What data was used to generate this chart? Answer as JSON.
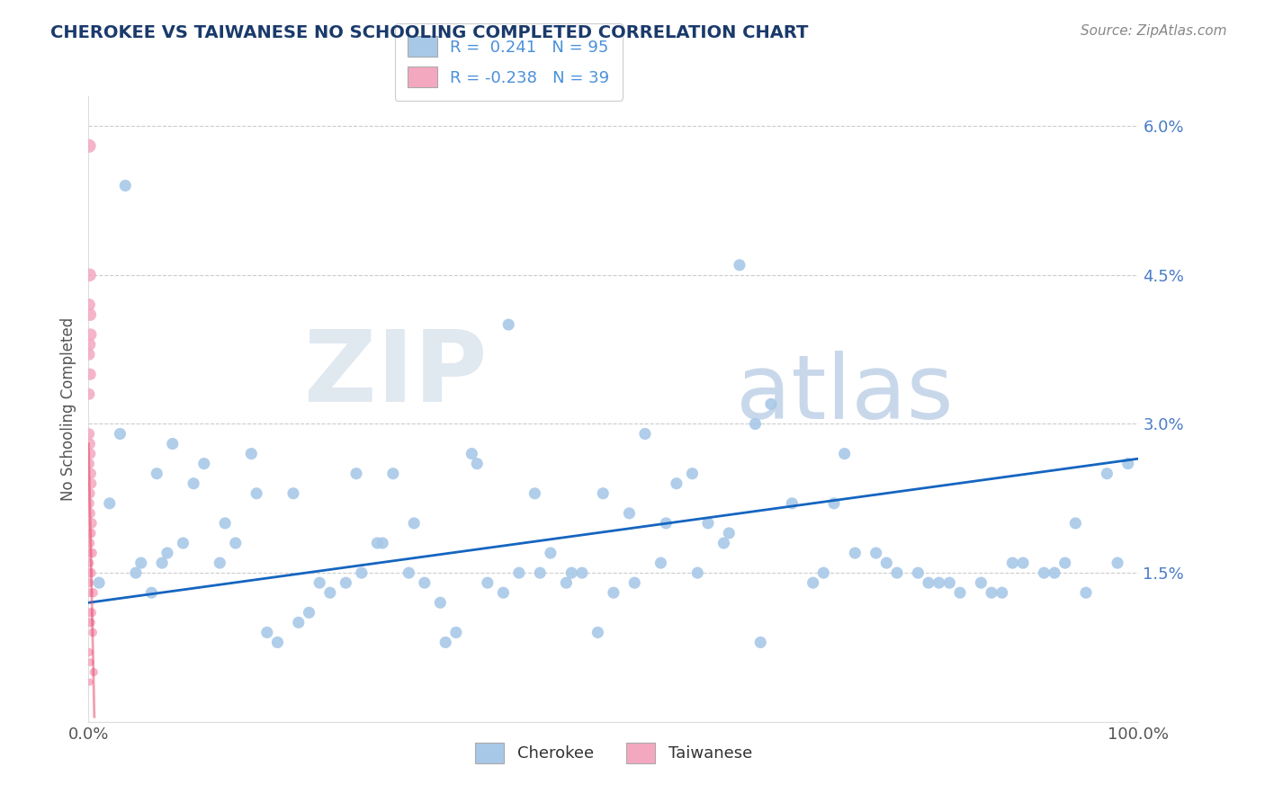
{
  "title": "CHEROKEE VS TAIWANESE NO SCHOOLING COMPLETED CORRELATION CHART",
  "source_text": "Source: ZipAtlas.com",
  "ylabel": "No Schooling Completed",
  "xlim": [
    0,
    100
  ],
  "ylim": [
    0,
    6.3
  ],
  "yticks": [
    0,
    1.5,
    3.0,
    4.5,
    6.0
  ],
  "ytick_labels": [
    "",
    "1.5%",
    "3.0%",
    "4.5%",
    "6.0%"
  ],
  "xtick_labels": [
    "0.0%",
    "100.0%"
  ],
  "cherokee_R": 0.241,
  "cherokee_N": 95,
  "taiwanese_R": -0.238,
  "taiwanese_N": 39,
  "cherokee_color": "#a8c8e8",
  "taiwanese_color": "#f4a8c0",
  "cherokee_line_color": "#1565c0",
  "taiwanese_line_color": "#e8406080",
  "background_color": "#ffffff",
  "grid_color": "#cccccc",
  "title_color": "#1a3a6b",
  "legend_color": "#4a90d9",
  "cherokee_x": [
    1.0,
    2.0,
    3.0,
    4.5,
    5.0,
    6.0,
    7.0,
    8.0,
    9.0,
    10.0,
    11.0,
    12.5,
    14.0,
    15.5,
    17.0,
    18.0,
    19.5,
    21.0,
    23.0,
    24.5,
    26.0,
    27.5,
    29.0,
    30.5,
    32.0,
    33.5,
    35.0,
    36.5,
    38.0,
    39.5,
    41.0,
    42.5,
    44.0,
    45.5,
    47.0,
    48.5,
    50.0,
    51.5,
    53.0,
    54.5,
    56.0,
    57.5,
    59.0,
    60.5,
    62.0,
    63.5,
    65.0,
    67.0,
    69.0,
    71.0,
    73.0,
    75.0,
    77.0,
    79.0,
    81.0,
    83.0,
    85.0,
    87.0,
    89.0,
    91.0,
    93.0,
    95.0,
    97.0,
    99.0,
    3.5,
    7.5,
    13.0,
    20.0,
    25.5,
    31.0,
    37.0,
    43.0,
    49.0,
    55.0,
    61.0,
    70.0,
    76.0,
    82.0,
    88.0,
    94.0,
    6.5,
    16.0,
    22.0,
    28.0,
    34.0,
    40.0,
    46.0,
    52.0,
    58.0,
    64.0,
    72.0,
    80.0,
    86.0,
    92.0,
    98.0
  ],
  "cherokee_y": [
    1.4,
    2.2,
    2.9,
    1.5,
    1.6,
    1.3,
    1.6,
    2.8,
    1.8,
    2.4,
    2.6,
    1.6,
    1.8,
    2.7,
    0.9,
    0.8,
    2.3,
    1.1,
    1.3,
    1.4,
    1.5,
    1.8,
    2.5,
    1.5,
    1.4,
    1.2,
    0.9,
    2.7,
    1.4,
    1.3,
    1.5,
    2.3,
    1.7,
    1.4,
    1.5,
    0.9,
    1.3,
    2.1,
    2.9,
    1.6,
    2.4,
    2.5,
    2.0,
    1.8,
    4.6,
    3.0,
    3.2,
    2.2,
    1.4,
    2.2,
    1.7,
    1.7,
    1.5,
    1.5,
    1.4,
    1.3,
    1.4,
    1.3,
    1.6,
    1.5,
    1.6,
    1.3,
    2.5,
    2.6,
    5.4,
    1.7,
    2.0,
    1.0,
    2.5,
    2.0,
    2.6,
    1.5,
    2.3,
    2.0,
    1.9,
    1.5,
    1.6,
    1.4,
    1.6,
    2.0,
    2.5,
    2.3,
    1.4,
    1.8,
    0.8,
    4.0,
    1.5,
    1.4,
    1.5,
    0.8,
    2.7,
    1.4,
    1.3,
    1.5,
    1.6
  ],
  "taiwanese_x": [
    0.05,
    0.05,
    0.05,
    0.05,
    0.05,
    0.05,
    0.05,
    0.05,
    0.05,
    0.05,
    0.05,
    0.05,
    0.1,
    0.1,
    0.1,
    0.1,
    0.1,
    0.1,
    0.1,
    0.1,
    0.15,
    0.15,
    0.15,
    0.15,
    0.15,
    0.15,
    0.15,
    0.2,
    0.2,
    0.2,
    0.2,
    0.25,
    0.25,
    0.3,
    0.3,
    0.35,
    0.4,
    0.45,
    0.5
  ],
  "taiwanese_y": [
    5.8,
    4.2,
    3.7,
    3.3,
    2.9,
    2.6,
    2.2,
    1.9,
    1.6,
    1.4,
    1.1,
    0.7,
    4.5,
    3.8,
    2.8,
    2.3,
    1.8,
    1.5,
    1.0,
    0.4,
    4.1,
    3.5,
    2.7,
    2.1,
    1.7,
    1.3,
    0.6,
    3.9,
    2.5,
    1.9,
    1.0,
    2.4,
    1.5,
    2.0,
    1.1,
    1.7,
    0.9,
    1.3,
    0.5
  ],
  "taiwanese_sizes": [
    120,
    100,
    90,
    85,
    80,
    75,
    70,
    65,
    60,
    55,
    50,
    45,
    110,
    95,
    85,
    75,
    65,
    55,
    45,
    35,
    100,
    90,
    80,
    70,
    60,
    50,
    40,
    95,
    80,
    70,
    55,
    75,
    60,
    70,
    55,
    60,
    50,
    55,
    45
  ],
  "cherokee_line_x": [
    0,
    100
  ],
  "cherokee_line_y": [
    1.2,
    2.65
  ],
  "taiwanese_line_x": [
    0,
    0.55
  ],
  "taiwanese_line_y": [
    2.8,
    0.05
  ]
}
